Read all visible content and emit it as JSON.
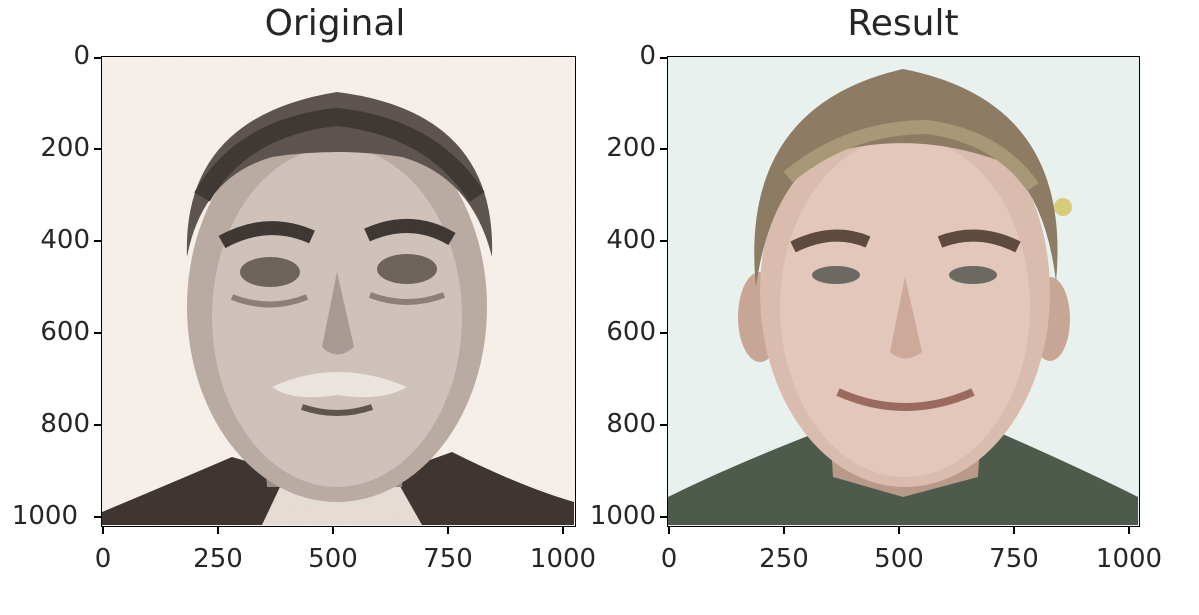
{
  "figure": {
    "panels": [
      {
        "title": "Original",
        "image_description": "grayscale sepia portrait photo of an elderly man with curly gray hair and a mustache",
        "background_color": "#f7efe8",
        "x_ticks": [
          "0",
          "250",
          "500",
          "750",
          "1000"
        ],
        "y_ticks": [
          "0",
          "200",
          "400",
          "600",
          "800",
          "1000"
        ]
      },
      {
        "title": "Result",
        "image_description": "color portrait photo of a younger smiling man with short light-brown hair",
        "background_color": "#e8f0ee",
        "x_ticks": [
          "0",
          "250",
          "500",
          "750",
          "1000"
        ],
        "y_ticks": [
          "0",
          "200",
          "400",
          "600",
          "800",
          "1000"
        ]
      }
    ]
  }
}
